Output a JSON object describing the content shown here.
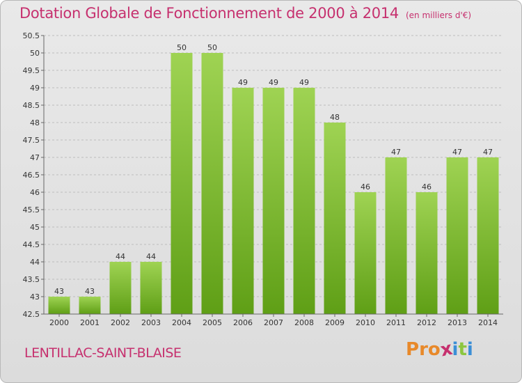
{
  "header": {
    "title": "Dotation Globale de Fonctionnement de 2000 à 2014",
    "subtitle": "(en milliers d'€)"
  },
  "footer": {
    "commune": "LENTILLAC-SAINT-BLAISE",
    "brand_letters": [
      "P",
      "r",
      "o",
      "x",
      "i",
      "t",
      "i"
    ]
  },
  "colors": {
    "title": "#c6306e",
    "bar_top": "#9fd353",
    "bar_bottom": "#5f9f16",
    "brand": [
      "#e8892a",
      "#e8892a",
      "#e8892a",
      "#c6306e",
      "#3b8fd6",
      "#8cc63f",
      "#3b8fd6"
    ]
  },
  "chart_data": {
    "type": "bar",
    "categories": [
      "2000",
      "2001",
      "2002",
      "2003",
      "2004",
      "2005",
      "2006",
      "2007",
      "2008",
      "2009",
      "2010",
      "2011",
      "2012",
      "2013",
      "2014"
    ],
    "values": [
      43,
      43,
      44,
      44,
      50,
      50,
      49,
      49,
      49,
      48,
      46,
      47,
      46,
      47,
      47
    ],
    "data_labels": [
      "43",
      "43",
      "44",
      "44",
      "50",
      "50",
      "49",
      "49",
      "49",
      "48",
      "46",
      "47",
      "46",
      "47",
      "47"
    ],
    "ylim": [
      42.5,
      50.5
    ],
    "yticks": [
      "42.5",
      "43",
      "43.5",
      "44",
      "44.5",
      "45",
      "45.5",
      "46",
      "46.5",
      "47",
      "47.5",
      "48",
      "48.5",
      "49",
      "49.5",
      "50",
      "50.5"
    ],
    "grid": true,
    "title": "Dotation Globale de Fonctionnement de 2000 à 2014",
    "xlabel": "",
    "ylabel": ""
  }
}
